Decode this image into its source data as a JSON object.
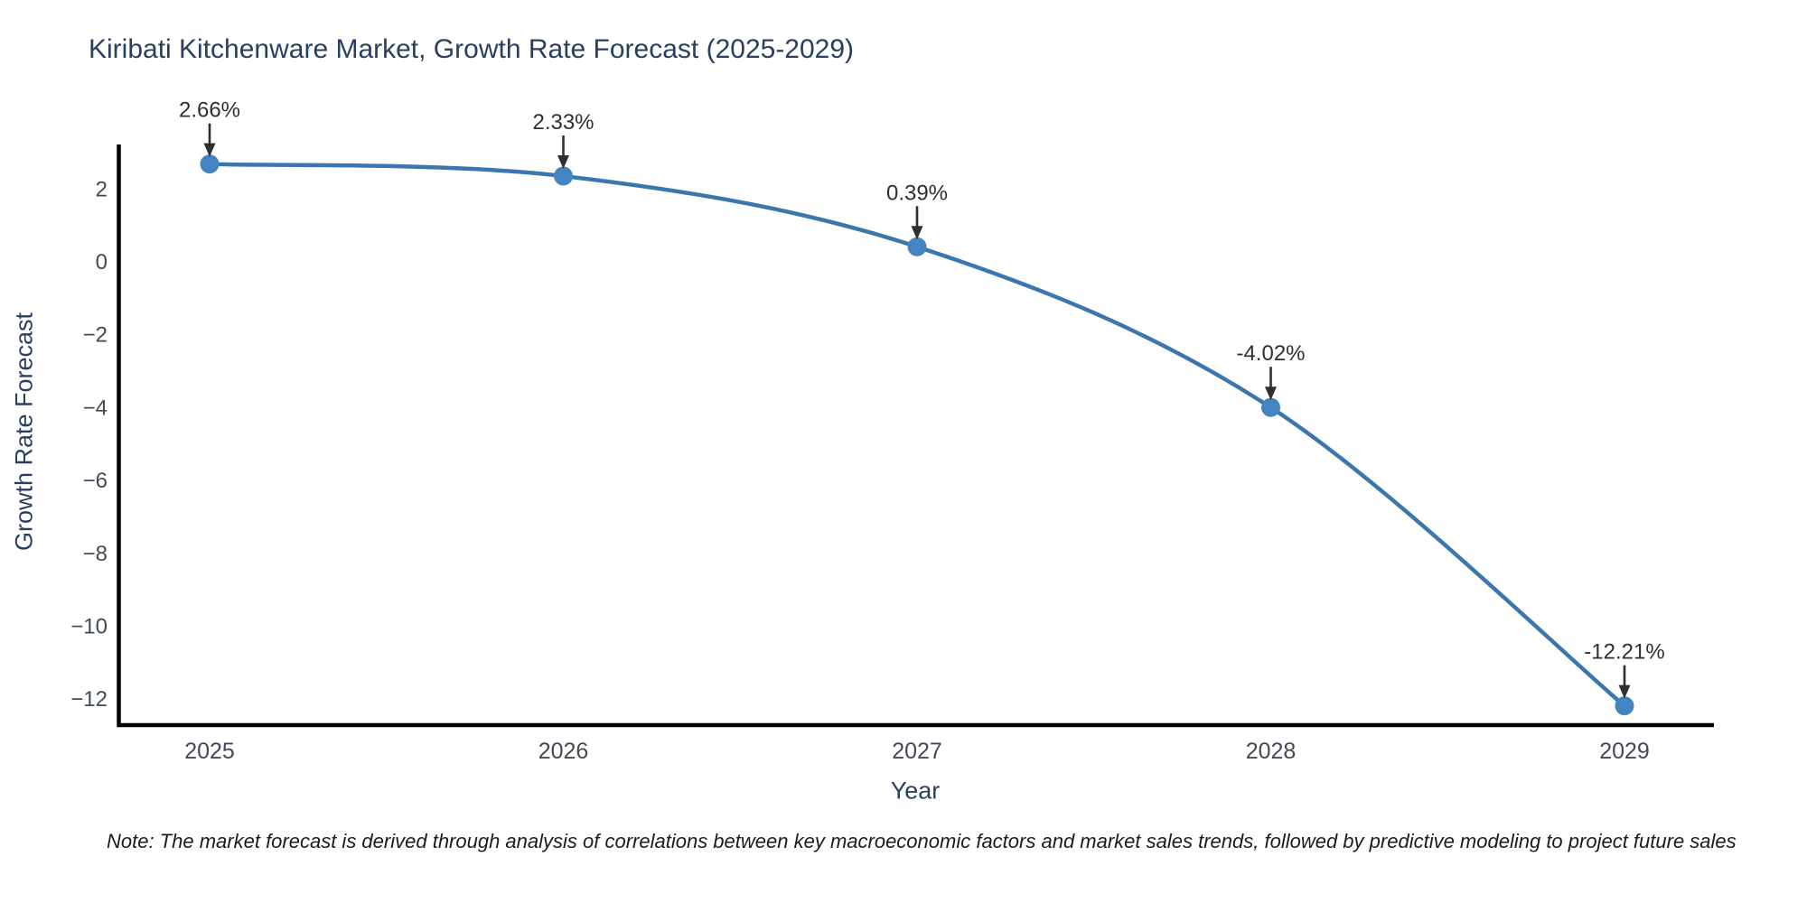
{
  "page": {
    "background": "#ffffff"
  },
  "chart_data": {
    "type": "line",
    "title": "Kiribati Kitchenware Market, Growth Rate Forecast (2025-2029)",
    "xlabel": "Year",
    "ylabel": "Growth Rate Forecast",
    "categories": [
      "2025",
      "2026",
      "2027",
      "2028",
      "2029"
    ],
    "series": [
      {
        "name": "Growth Rate Forecast",
        "values": [
          2.66,
          2.33,
          0.39,
          -4.02,
          -12.21
        ]
      }
    ],
    "point_labels": [
      "2.66%",
      "2.33%",
      "0.39%",
      "-4.02%",
      "-12.21%"
    ],
    "line_shape": "spline",
    "markers": true,
    "annotations_arrows": true,
    "grid": false,
    "legend_position": "none",
    "ylim": [
      -12.85,
      3.2
    ],
    "ytick_values": [
      2,
      0,
      -2,
      -4,
      -6,
      -8,
      -10,
      -12
    ],
    "ytick_labels": [
      "2",
      "0",
      "−2",
      "−4",
      "−6",
      "−8",
      "−10",
      "−12"
    ],
    "colors": {
      "line": "#3b76ae",
      "marker": "#4484c1",
      "axis": "#000000",
      "title": "#2a3f5f",
      "tick": "#424a56",
      "annotation": "#2f2f2f"
    }
  },
  "note": {
    "text": "Note: The market forecast is derived through analysis of correlations between key macroeconomic factors and market sales trends, followed by predictive modeling to project future sales"
  }
}
